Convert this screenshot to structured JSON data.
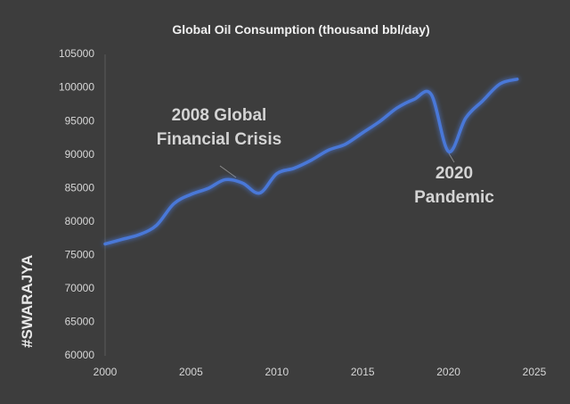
{
  "chart_data": {
    "type": "line",
    "title": "Global Oil Consumption (thousand bbl/day)",
    "watermark": "#SWARAJYA",
    "x": [
      2000,
      2001,
      2002,
      2003,
      2004,
      2005,
      2006,
      2007,
      2008,
      2009,
      2010,
      2011,
      2012,
      2013,
      2014,
      2015,
      2016,
      2017,
      2018,
      2019,
      2020,
      2021,
      2022,
      2023,
      2024
    ],
    "series": [
      {
        "name": "Global Oil Consumption",
        "color": "#4a78d8",
        "values": [
          76700,
          77400,
          78100,
          79500,
          82700,
          84100,
          85000,
          86300,
          85800,
          84300,
          87200,
          88000,
          89200,
          90700,
          91600,
          93300,
          95000,
          97000,
          98300,
          99000,
          90500,
          95500,
          98100,
          100600,
          101300
        ]
      }
    ],
    "xlim": [
      2000,
      2025
    ],
    "xticks": [
      2000,
      2005,
      2010,
      2015,
      2020,
      2025
    ],
    "ylim": [
      60000,
      105000
    ],
    "yticks": [
      60000,
      65000,
      70000,
      75000,
      80000,
      85000,
      90000,
      95000,
      100000,
      105000
    ],
    "grid": false,
    "annotations": [
      {
        "lines": [
          "2008 Global",
          "Financial Crisis"
        ]
      },
      {
        "lines": [
          "2020",
          "Pandemic"
        ]
      }
    ]
  }
}
